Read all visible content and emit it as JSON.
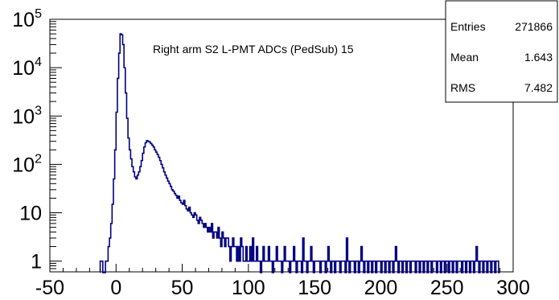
{
  "chart_data": {
    "type": "histogram",
    "title": "Right arm S2 L-PMT ADCs (PedSub) 15",
    "xlabel": "",
    "ylabel": "",
    "xlim": [
      -50,
      300
    ],
    "ylim": [
      0.6,
      100000
    ],
    "yscale": "log",
    "grid": false,
    "line_color": "#000080",
    "xticks": [
      "-50",
      "0",
      "50",
      "100",
      "150",
      "200",
      "250",
      "300"
    ],
    "yticks": [
      {
        "value": 1,
        "base": "1",
        "exp": ""
      },
      {
        "value": 10,
        "base": "10",
        "exp": ""
      },
      {
        "value": 100,
        "base": "10",
        "exp": "2"
      },
      {
        "value": 1000,
        "base": "10",
        "exp": "3"
      },
      {
        "value": 10000,
        "base": "10",
        "exp": "4"
      },
      {
        "value": 100000,
        "base": "10",
        "exp": "5"
      }
    ],
    "stats": [
      {
        "label": "Entries",
        "value": "271866"
      },
      {
        "label": "Mean",
        "value": "1.643"
      },
      {
        "label": "RMS",
        "value": "7.482"
      }
    ],
    "bin_edges": [
      -12,
      296
    ],
    "bin_width": 1,
    "values": [
      1,
      1,
      0,
      0,
      1,
      1,
      2,
      3,
      6,
      15,
      50,
      200,
      1200,
      6000,
      20000,
      50000,
      48000,
      30000,
      10000,
      3000,
      900,
      350,
      200,
      130,
      90,
      70,
      55,
      50,
      60,
      70,
      90,
      120,
      170,
      230,
      280,
      310,
      300,
      290,
      270,
      250,
      230,
      200,
      180,
      160,
      140,
      120,
      100,
      85,
      70,
      60,
      52,
      45,
      40,
      35,
      30,
      28,
      25,
      23,
      20,
      22,
      18,
      16,
      15,
      18,
      14,
      12,
      11,
      13,
      10,
      9,
      8,
      10,
      9,
      7,
      6,
      8,
      7,
      6,
      5,
      6,
      5,
      4,
      5,
      4,
      6,
      3,
      4,
      4,
      3,
      5,
      3,
      2,
      4,
      3,
      2,
      3,
      3,
      2,
      1,
      2,
      3,
      2,
      2,
      1,
      2,
      1,
      3,
      2,
      1,
      1,
      2,
      1,
      1,
      2,
      1,
      3,
      1,
      1,
      2,
      1,
      1,
      0,
      1,
      2,
      1,
      1,
      1,
      2,
      1,
      1,
      0,
      1,
      1,
      2,
      1,
      1,
      1,
      0,
      1,
      2,
      1,
      1,
      1,
      0,
      1,
      1,
      2,
      1,
      0,
      1,
      1,
      1,
      0,
      3,
      1,
      1,
      0,
      1,
      1,
      2,
      1,
      0,
      1,
      1,
      1,
      1,
      0,
      1,
      1,
      1,
      0,
      1,
      2,
      1,
      0,
      1,
      1,
      0,
      1,
      1,
      1,
      0,
      1,
      1,
      1,
      0,
      3,
      1,
      0,
      1,
      1,
      1,
      0,
      1,
      1,
      0,
      1,
      2,
      1,
      0,
      1,
      1,
      0,
      1,
      1,
      0,
      1,
      1,
      0,
      1,
      1,
      1,
      0,
      1,
      1,
      0,
      1,
      1,
      0,
      1,
      1,
      0,
      1,
      2,
      1,
      0,
      1,
      1,
      0,
      1,
      1,
      0,
      1,
      1,
      0,
      1,
      1,
      1,
      0,
      1,
      1,
      0,
      1,
      1,
      0,
      1,
      1,
      0,
      1,
      1,
      0,
      1,
      1,
      1,
      0,
      1,
      1,
      0,
      1,
      1,
      0,
      1,
      1,
      0,
      1,
      1,
      0,
      1,
      1,
      0,
      1,
      1,
      1,
      0,
      1,
      1,
      0,
      1,
      1,
      0,
      1,
      1,
      0,
      1,
      2,
      1,
      0,
      1,
      1,
      0,
      1,
      1,
      0,
      1,
      1,
      0,
      1,
      1,
      0,
      1,
      1,
      0
    ]
  }
}
